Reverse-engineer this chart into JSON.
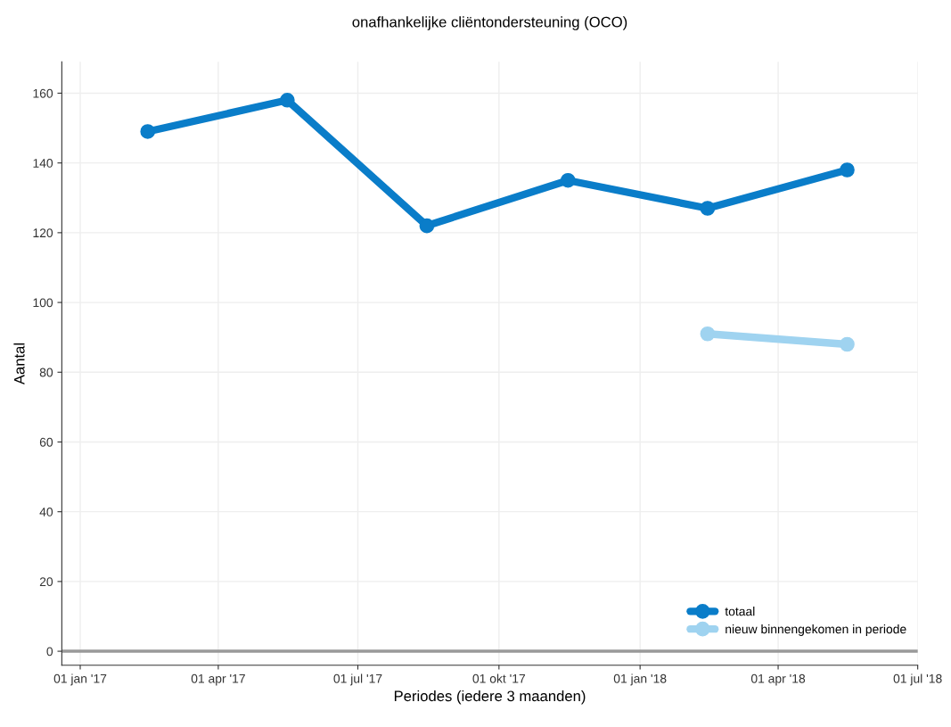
{
  "chart_data": {
    "type": "line",
    "title": "onafhankelijke cliëntondersteuning (OCO)",
    "xlabel": "Periodes (iedere 3 maanden)",
    "ylabel": "Aantal",
    "x": [
      "2017-02-14",
      "2017-05-16",
      "2017-08-15",
      "2017-11-15",
      "2018-02-14",
      "2018-05-16"
    ],
    "series": [
      {
        "name": "totaal",
        "color": "#0a7dc9",
        "values": [
          149,
          158,
          122,
          135,
          127,
          138
        ]
      },
      {
        "name": "nieuw binnengekomen in periode",
        "color": "#9fd3f0",
        "values": [
          null,
          null,
          null,
          null,
          91,
          88
        ]
      }
    ],
    "xlim": [
      "2016-12-20",
      "2018-07-01"
    ],
    "xticks": [
      {
        "value": "2017-01-01",
        "label": "01 jan '17"
      },
      {
        "value": "2017-04-01",
        "label": "01 apr '17"
      },
      {
        "value": "2017-07-01",
        "label": "01 jul '17"
      },
      {
        "value": "2017-10-01",
        "label": "01 okt '17"
      },
      {
        "value": "2018-01-01",
        "label": "01 jan '18"
      },
      {
        "value": "2018-04-01",
        "label": "01 apr '18"
      },
      {
        "value": "2018-07-01",
        "label": "01 jul '18"
      }
    ],
    "ylim": [
      -4,
      169
    ],
    "yticks": [
      0,
      20,
      40,
      60,
      80,
      100,
      120,
      140,
      160
    ],
    "ref_lines": [
      {
        "axis": "y",
        "value": 0,
        "color": "#999999"
      }
    ],
    "grid": true,
    "legend": "bottom right",
    "marker": "circle",
    "line_style": "solid"
  }
}
